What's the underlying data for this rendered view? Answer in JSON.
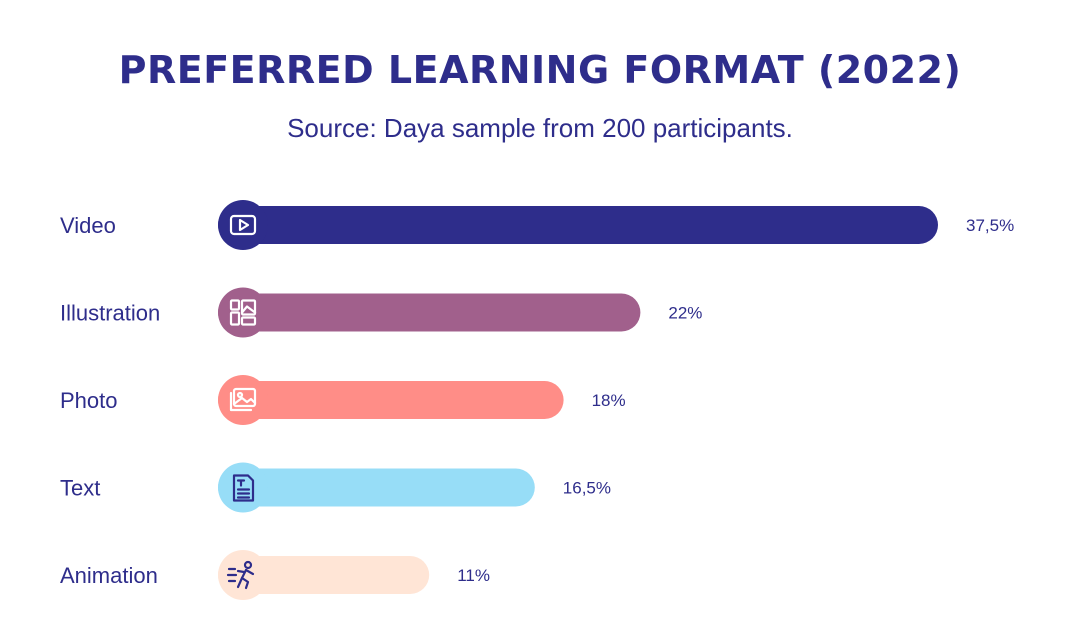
{
  "chart_data": {
    "type": "bar",
    "orientation": "horizontal",
    "title": "PREFERRED LEARNING FORMAT (2022)",
    "subtitle": "Source: Daya sample from 200 participants.",
    "categories": [
      "Video",
      "Illustration",
      "Photo",
      "Text",
      "Animation"
    ],
    "values": [
      37.5,
      22,
      18,
      16.5,
      11
    ],
    "value_labels": [
      "37,5%",
      "22%",
      "18%",
      "16,5%",
      "11%"
    ],
    "unit": "%",
    "grid": false,
    "legend": "none"
  },
  "bars": [
    {
      "category": "Video",
      "color": "#2E2D8B",
      "icon_bg": "#2E2D8B",
      "icon_color": "#ffffff",
      "icon": "play-video-icon"
    },
    {
      "category": "Illustration",
      "color": "#A1608C",
      "icon_bg": "#A1608C",
      "icon_color": "#ffffff",
      "icon": "layout-gallery-icon"
    },
    {
      "category": "Photo",
      "color": "#FF8D87",
      "icon_bg": "#FF8D87",
      "icon_color": "#ffffff",
      "icon": "image-photo-icon"
    },
    {
      "category": "Text",
      "color": "#97DDF7",
      "icon_bg": "#97DDF7",
      "icon_color": "#2E2D8B",
      "icon": "text-document-icon"
    },
    {
      "category": "Animation",
      "color": "#FFE5D6",
      "icon_bg": "#FFE5D6",
      "icon_color": "#2E2D8B",
      "icon": "running-figure-icon"
    }
  ],
  "colors": {
    "text": "#2E2D8B",
    "background": "#ffffff"
  }
}
